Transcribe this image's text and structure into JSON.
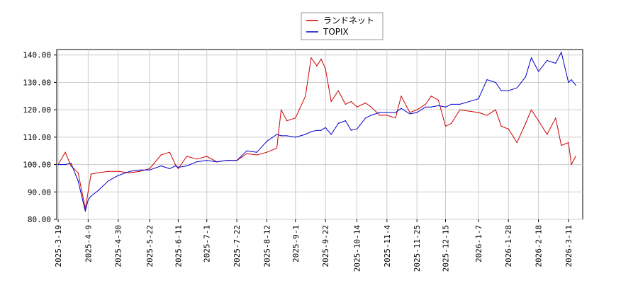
{
  "chart_data": {
    "type": "line",
    "title": "",
    "xlabel": "",
    "ylabel": "",
    "x_tick_labels": [
      "2025-3-19",
      "2025-4-9",
      "2025-4-30",
      "2025-5-22",
      "2025-6-11",
      "2025-7-1",
      "2025-7-22",
      "2025-8-12",
      "2025-9-1",
      "2025-9-22",
      "2025-10-14",
      "2025-11-4",
      "2025-11-25",
      "2025-12-15",
      "2026-1-7",
      "2026-1-28",
      "2026-2-18",
      "2026-3-11"
    ],
    "y_tick_labels": [
      "80.00",
      "90.00",
      "100.00",
      "110.00",
      "120.00",
      "130.00",
      "140.00"
    ],
    "y_ticks": [
      80,
      90,
      100,
      110,
      120,
      130,
      140
    ],
    "ylim": [
      80,
      142
    ],
    "grid": true,
    "legend_position": "top-center",
    "series": [
      {
        "name": "ランドネット",
        "color": "#cc0000",
        "x": [
          "2025-3-19",
          "2025-3-24",
          "2025-3-28",
          "2025-4-2",
          "2025-4-7",
          "2025-4-9",
          "2025-4-11",
          "2025-4-16",
          "2025-4-23",
          "2025-4-30",
          "2025-5-8",
          "2025-5-15",
          "2025-5-22",
          "2025-5-30",
          "2025-6-5",
          "2025-6-9",
          "2025-6-11",
          "2025-6-17",
          "2025-6-24",
          "2025-7-1",
          "2025-7-8",
          "2025-7-15",
          "2025-7-22",
          "2025-7-29",
          "2025-8-5",
          "2025-8-12",
          "2025-8-19",
          "2025-8-22",
          "2025-8-26",
          "2025-9-1",
          "2025-9-8",
          "2025-9-12",
          "2025-9-16",
          "2025-9-19",
          "2025-9-22",
          "2025-9-26",
          "2025-10-1",
          "2025-10-6",
          "2025-10-10",
          "2025-10-14",
          "2025-10-20",
          "2025-10-24",
          "2025-10-30",
          "2025-11-4",
          "2025-11-10",
          "2025-11-14",
          "2025-11-20",
          "2025-11-25",
          "2025-12-1",
          "2025-12-5",
          "2025-12-10",
          "2025-12-15",
          "2025-12-19",
          "2025-12-25",
          "2026-1-7",
          "2026-1-13",
          "2026-1-19",
          "2026-1-23",
          "2026-1-28",
          "2026-2-3",
          "2026-2-9",
          "2026-2-13",
          "2026-2-18",
          "2026-2-24",
          "2026-3-2",
          "2026-3-6",
          "2026-3-11",
          "2026-3-13",
          "2026-3-16"
        ],
        "values": [
          100.0,
          104.5,
          99.5,
          97.0,
          84.0,
          90.0,
          96.5,
          97.0,
          97.5,
          97.5,
          97.0,
          97.5,
          98.5,
          103.5,
          104.5,
          100.0,
          98.5,
          103.0,
          102.0,
          103.0,
          101.0,
          101.5,
          101.5,
          104.0,
          103.5,
          104.5,
          106.0,
          120.0,
          116.0,
          117.0,
          125.0,
          139.0,
          136.0,
          138.5,
          135.0,
          123.0,
          127.0,
          122.0,
          123.0,
          121.0,
          122.5,
          121.0,
          118.0,
          118.0,
          117.0,
          125.0,
          119.0,
          120.0,
          122.0,
          125.0,
          123.5,
          114.0,
          115.0,
          120.0,
          119.0,
          118.0,
          120.0,
          114.0,
          113.0,
          108.0,
          115.0,
          120.0,
          116.0,
          111.0,
          117.0,
          107.0,
          108.0,
          100.0,
          103.0
        ]
      },
      {
        "name": "TOPIX",
        "color": "#0000cc",
        "x": [
          "2025-3-19",
          "2025-3-24",
          "2025-3-28",
          "2025-4-2",
          "2025-4-7",
          "2025-4-9",
          "2025-4-11",
          "2025-4-16",
          "2025-4-23",
          "2025-4-30",
          "2025-5-8",
          "2025-5-15",
          "2025-5-22",
          "2025-5-30",
          "2025-6-5",
          "2025-6-9",
          "2025-6-11",
          "2025-6-17",
          "2025-6-24",
          "2025-7-1",
          "2025-7-8",
          "2025-7-15",
          "2025-7-22",
          "2025-7-29",
          "2025-8-5",
          "2025-8-12",
          "2025-8-19",
          "2025-8-22",
          "2025-8-26",
          "2025-9-1",
          "2025-9-8",
          "2025-9-12",
          "2025-9-16",
          "2025-9-19",
          "2025-9-22",
          "2025-9-26",
          "2025-10-1",
          "2025-10-6",
          "2025-10-10",
          "2025-10-14",
          "2025-10-20",
          "2025-10-24",
          "2025-10-30",
          "2025-11-4",
          "2025-11-10",
          "2025-11-14",
          "2025-11-20",
          "2025-11-25",
          "2025-12-1",
          "2025-12-5",
          "2025-12-10",
          "2025-12-15",
          "2025-12-19",
          "2025-12-25",
          "2026-1-7",
          "2026-1-13",
          "2026-1-19",
          "2026-1-23",
          "2026-1-28",
          "2026-2-3",
          "2026-2-9",
          "2026-2-13",
          "2026-2-18",
          "2026-2-24",
          "2026-3-2",
          "2026-3-6",
          "2026-3-11",
          "2026-3-13",
          "2026-3-16"
        ],
        "values": [
          100.0,
          100.0,
          100.5,
          94.0,
          83.0,
          87.0,
          88.5,
          90.5,
          94.0,
          96.0,
          97.5,
          98.0,
          98.0,
          99.5,
          98.5,
          99.5,
          99.0,
          99.5,
          101.0,
          101.5,
          101.0,
          101.5,
          101.5,
          105.0,
          104.5,
          108.5,
          111.0,
          110.5,
          110.5,
          110.0,
          111.0,
          112.0,
          112.5,
          112.5,
          113.5,
          111.0,
          115.0,
          116.0,
          112.5,
          113.0,
          117.0,
          118.0,
          119.0,
          119.0,
          119.0,
          120.5,
          118.5,
          119.0,
          121.0,
          121.0,
          121.5,
          121.0,
          122.0,
          122.0,
          124.0,
          131.0,
          130.0,
          127.0,
          127.0,
          128.0,
          132.0,
          139.0,
          134.0,
          138.0,
          137.0,
          141.0,
          130.0,
          131.0,
          129.0
        ]
      }
    ]
  }
}
